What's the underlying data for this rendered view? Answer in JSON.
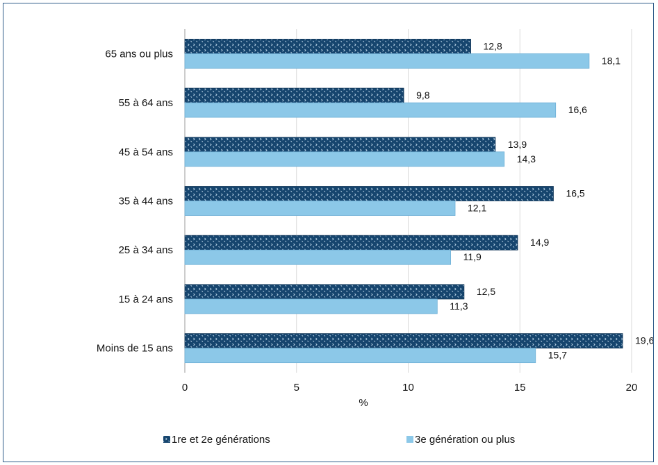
{
  "chart_data": {
    "type": "bar",
    "orientation": "horizontal",
    "categories": [
      "65 ans ou plus",
      "55 à 64 ans",
      "45 à 54 ans",
      "35 à 44 ans",
      "25 à 34 ans",
      "15 à 24 ans",
      "Moins de 15 ans"
    ],
    "series": [
      {
        "name": "1re et 2e générations",
        "values": [
          12.8,
          9.8,
          13.9,
          16.5,
          14.9,
          12.5,
          19.6
        ],
        "labels": [
          "12,8",
          "9,8",
          "13,9",
          "16,5",
          "14,9",
          "12,5",
          "19,6"
        ],
        "color": "#16456e",
        "pattern": "dotted"
      },
      {
        "name": "3e génération ou plus",
        "values": [
          18.1,
          16.6,
          14.3,
          12.1,
          11.9,
          11.3,
          15.7
        ],
        "labels": [
          "18,1",
          "16,6",
          "14,3",
          "12,1",
          "11,9",
          "11,3",
          "15,7"
        ],
        "color": "#8cc8e8"
      }
    ],
    "xlabel": "%",
    "xlim": [
      0,
      20
    ],
    "xticks": [
      "0",
      "5",
      "10",
      "15",
      "20"
    ],
    "grid": "vertical",
    "legend_position": "bottom"
  }
}
